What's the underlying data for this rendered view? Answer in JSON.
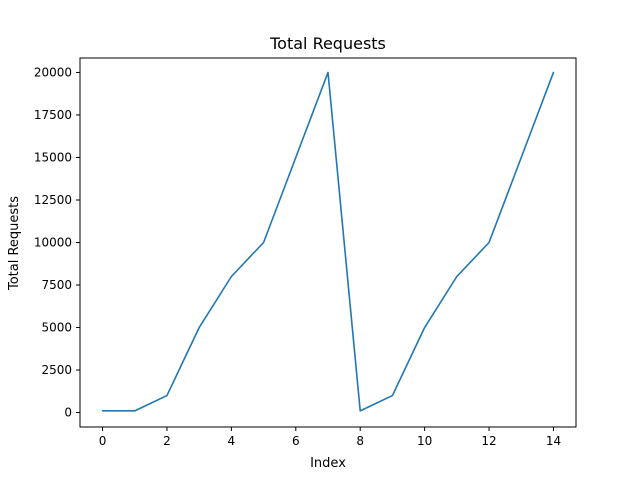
{
  "chart_data": {
    "type": "line",
    "title": "Total Requests",
    "xlabel": "Index",
    "ylabel": "Total Requests",
    "xlim": [
      -0.7,
      14.7
    ],
    "ylim": [
      -850,
      20850
    ],
    "x_ticks": [
      0,
      2,
      4,
      6,
      8,
      10,
      12,
      14
    ],
    "y_ticks": [
      0,
      2500,
      5000,
      7500,
      10000,
      12500,
      15000,
      17500,
      20000
    ],
    "grid": false,
    "series": [
      {
        "color": "#1f77b4",
        "x": [
          0,
          1,
          2,
          3,
          4,
          5,
          6,
          7,
          8,
          9,
          10,
          11,
          12,
          13,
          14
        ],
        "values": [
          100,
          100,
          1000,
          5000,
          8000,
          10000,
          15000,
          20000,
          100,
          1000,
          5000,
          8000,
          10000,
          15000,
          20000
        ]
      }
    ]
  }
}
